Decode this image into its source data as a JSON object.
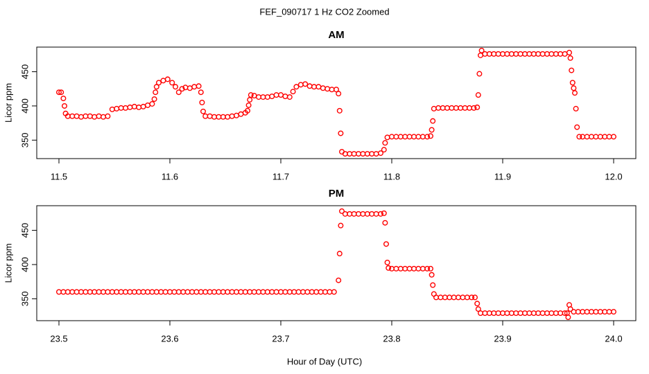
{
  "title": "FEF_090717  1 Hz CO2 Zoomed",
  "x_label": "Hour of Day (UTC)",
  "chart_data": [
    {
      "type": "scatter",
      "title": "AM",
      "y_label": "Licor ppm",
      "color": "#ff0000",
      "xlim": [
        11.48,
        12.02
      ],
      "ylim": [
        323,
        486
      ],
      "xticks": [
        11.5,
        11.6,
        11.7,
        11.8,
        11.9,
        {
          "value": 12,
          "label": "12.0"
        }
      ],
      "yticks": [
        350,
        400,
        450
      ],
      "x": [
        11.5,
        11.502,
        11.504,
        11.505,
        11.506,
        11.508,
        11.512,
        11.516,
        11.52,
        11.524,
        11.528,
        11.532,
        11.536,
        11.54,
        11.544,
        11.548,
        11.552,
        11.556,
        11.56,
        11.564,
        11.568,
        11.572,
        11.576,
        11.58,
        11.584,
        11.586,
        11.587,
        11.588,
        11.59,
        11.594,
        11.598,
        11.602,
        11.605,
        11.608,
        11.611,
        11.614,
        11.618,
        11.622,
        11.626,
        11.628,
        11.629,
        11.63,
        11.632,
        11.636,
        11.64,
        11.644,
        11.648,
        11.652,
        11.656,
        11.66,
        11.664,
        11.668,
        11.67,
        11.671,
        11.672,
        11.673,
        11.676,
        11.68,
        11.684,
        11.688,
        11.692,
        11.696,
        11.7,
        11.704,
        11.708,
        11.711,
        11.714,
        11.718,
        11.722,
        11.726,
        11.73,
        11.734,
        11.738,
        11.742,
        11.746,
        11.75,
        11.752,
        11.753,
        11.754,
        11.755,
        11.758,
        11.762,
        11.766,
        11.77,
        11.774,
        11.778,
        11.782,
        11.786,
        11.79,
        11.793,
        11.794,
        11.796,
        11.8,
        11.804,
        11.808,
        11.812,
        11.816,
        11.82,
        11.824,
        11.828,
        11.832,
        11.835,
        11.836,
        11.837,
        11.838,
        11.842,
        11.846,
        11.85,
        11.854,
        11.858,
        11.862,
        11.866,
        11.87,
        11.874,
        11.877,
        11.878,
        11.879,
        11.88,
        11.881,
        11.884,
        11.888,
        11.892,
        11.896,
        11.9,
        11.904,
        11.908,
        11.912,
        11.916,
        11.92,
        11.924,
        11.928,
        11.932,
        11.936,
        11.94,
        11.944,
        11.948,
        11.952,
        11.956,
        11.96,
        11.961,
        11.962,
        11.963,
        11.964,
        11.965,
        11.966,
        11.967,
        11.969,
        11.972,
        11.976,
        11.98,
        11.984,
        11.988,
        11.992,
        11.996,
        12.0
      ],
      "values": [
        420,
        420,
        411,
        400,
        389,
        385,
        385,
        385,
        384,
        385,
        385,
        384,
        385,
        384,
        385,
        395,
        396,
        397,
        397,
        398,
        399,
        398,
        399,
        401,
        403,
        410,
        420,
        428,
        434,
        437,
        439,
        434,
        428,
        420,
        425,
        427,
        426,
        428,
        429,
        420,
        405,
        392,
        385,
        385,
        384,
        384,
        384,
        384,
        385,
        386,
        388,
        390,
        393,
        401,
        409,
        416,
        415,
        413,
        413,
        413,
        414,
        416,
        416,
        414,
        413,
        421,
        428,
        431,
        432,
        429,
        428,
        428,
        426,
        425,
        424,
        424,
        418,
        393,
        360,
        333,
        330,
        330,
        330,
        330,
        330,
        330,
        330,
        330,
        331,
        336,
        346,
        354,
        355,
        355,
        355,
        355,
        355,
        355,
        355,
        355,
        355,
        356,
        365,
        378,
        396,
        397,
        397,
        397,
        397,
        397,
        397,
        397,
        397,
        397,
        398,
        416,
        447,
        474,
        481,
        476,
        476,
        476,
        476,
        476,
        476,
        476,
        476,
        476,
        476,
        476,
        476,
        476,
        476,
        476,
        476,
        476,
        476,
        476,
        478,
        470,
        452,
        434,
        426,
        419,
        396,
        369,
        355,
        355,
        355,
        355,
        355,
        355,
        355,
        355,
        355
      ]
    },
    {
      "type": "scatter",
      "title": "PM",
      "y_label": "Licor ppm",
      "color": "#ff0000",
      "xlim": [
        23.48,
        24.02
      ],
      "ylim": [
        318,
        486
      ],
      "xticks": [
        23.5,
        23.6,
        23.7,
        23.8,
        23.9,
        {
          "value": 24,
          "label": "24.0"
        }
      ],
      "yticks": [
        350,
        400,
        450
      ],
      "x": [
        23.5,
        23.504,
        23.508,
        23.512,
        23.516,
        23.52,
        23.524,
        23.528,
        23.532,
        23.536,
        23.54,
        23.544,
        23.548,
        23.552,
        23.556,
        23.56,
        23.564,
        23.568,
        23.572,
        23.576,
        23.58,
        23.584,
        23.588,
        23.592,
        23.596,
        23.6,
        23.604,
        23.608,
        23.612,
        23.616,
        23.62,
        23.624,
        23.628,
        23.632,
        23.636,
        23.64,
        23.644,
        23.648,
        23.652,
        23.656,
        23.66,
        23.664,
        23.668,
        23.672,
        23.676,
        23.68,
        23.684,
        23.688,
        23.692,
        23.696,
        23.7,
        23.704,
        23.708,
        23.712,
        23.716,
        23.72,
        23.724,
        23.728,
        23.732,
        23.736,
        23.74,
        23.744,
        23.748,
        23.752,
        23.753,
        23.754,
        23.755,
        23.758,
        23.762,
        23.766,
        23.77,
        23.774,
        23.778,
        23.782,
        23.786,
        23.79,
        23.793,
        23.794,
        23.795,
        23.796,
        23.797,
        23.8,
        23.804,
        23.808,
        23.812,
        23.816,
        23.82,
        23.824,
        23.828,
        23.832,
        23.835,
        23.836,
        23.837,
        23.838,
        23.84,
        23.844,
        23.848,
        23.852,
        23.856,
        23.86,
        23.864,
        23.868,
        23.872,
        23.875,
        23.877,
        23.878,
        23.88,
        23.884,
        23.888,
        23.892,
        23.896,
        23.9,
        23.904,
        23.908,
        23.912,
        23.916,
        23.92,
        23.924,
        23.928,
        23.932,
        23.936,
        23.94,
        23.944,
        23.948,
        23.952,
        23.956,
        23.958,
        23.959,
        23.96,
        23.961,
        23.964,
        23.968,
        23.972,
        23.976,
        23.98,
        23.984,
        23.988,
        23.992,
        23.996,
        24.0
      ],
      "values": [
        360,
        360,
        360,
        360,
        360,
        360,
        360,
        360,
        360,
        360,
        360,
        360,
        360,
        360,
        360,
        360,
        360,
        360,
        360,
        360,
        360,
        360,
        360,
        360,
        360,
        360,
        360,
        360,
        360,
        360,
        360,
        360,
        360,
        360,
        360,
        360,
        360,
        360,
        360,
        360,
        360,
        360,
        360,
        360,
        360,
        360,
        360,
        360,
        360,
        360,
        360,
        360,
        360,
        360,
        360,
        360,
        360,
        360,
        360,
        360,
        360,
        360,
        360,
        377,
        416,
        457,
        478,
        474,
        474,
        474,
        474,
        474,
        474,
        474,
        474,
        474,
        475,
        461,
        430,
        403,
        395,
        394,
        394,
        394,
        394,
        394,
        394,
        394,
        394,
        394,
        394,
        385,
        370,
        357,
        352,
        352,
        352,
        352,
        352,
        352,
        352,
        352,
        352,
        352,
        343,
        335,
        329,
        329,
        329,
        329,
        329,
        329,
        329,
        329,
        329,
        329,
        329,
        329,
        329,
        329,
        329,
        329,
        329,
        329,
        329,
        329,
        329,
        323,
        341,
        335,
        331,
        331,
        331,
        331,
        331,
        331,
        331,
        331,
        331,
        331
      ]
    }
  ]
}
